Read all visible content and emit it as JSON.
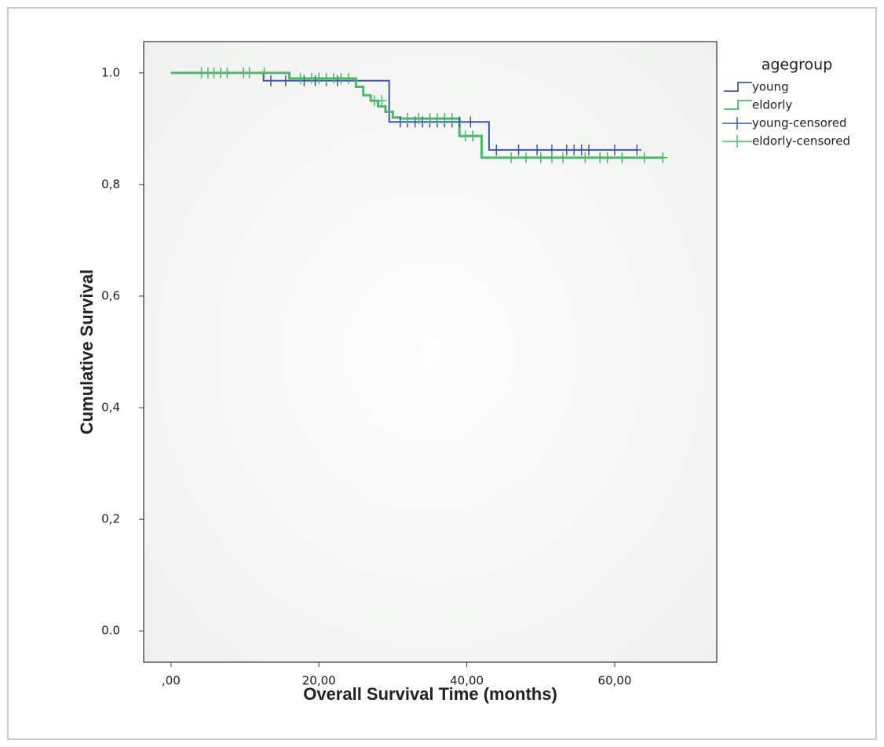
{
  "chart_data": {
    "type": "line",
    "x_label": "Overall Survival Time (months)",
    "y_label": "Cumulative Survival",
    "legend_title": "agegroup",
    "legend": "upper right outside",
    "xlim": [
      -3.7,
      73.8
    ],
    "ylim": [
      -0.056,
      1.056
    ],
    "xticks": [
      {
        "value": 0,
        "label": ",00"
      },
      {
        "value": 20,
        "label": "20,00"
      },
      {
        "value": 40,
        "label": "40,00"
      },
      {
        "value": 60,
        "label": "60,00"
      }
    ],
    "yticks": [
      {
        "value": 0,
        "label": "0.0"
      },
      {
        "value": 0.2,
        "label": "0,2"
      },
      {
        "value": 0.4,
        "label": "0,4"
      },
      {
        "value": 0.6,
        "label": "0,6"
      },
      {
        "value": 0.8,
        "label": "0,8"
      },
      {
        "value": 1,
        "label": "1.0"
      }
    ],
    "series": [
      {
        "name": "young",
        "color": "#3d5aa8",
        "x": [
          0,
          12.5,
          12.5,
          29.5,
          29.5,
          43,
          43,
          63
        ],
        "values": [
          1,
          1,
          0.986,
          0.986,
          0.912,
          0.912,
          0.862,
          0.862
        ]
      },
      {
        "name": "eldorly",
        "color": "#4cb96b",
        "x": [
          0,
          16,
          16,
          25,
          25,
          26,
          26,
          27,
          27,
          28,
          28,
          29,
          29,
          30,
          30,
          31,
          31,
          39,
          39,
          42,
          42,
          66.5
        ],
        "values": [
          1,
          1,
          0.99,
          0.99,
          0.975,
          0.975,
          0.96,
          0.96,
          0.95,
          0.95,
          0.94,
          0.94,
          0.93,
          0.93,
          0.92,
          0.92,
          0.918,
          0.918,
          0.887,
          0.887,
          0.848,
          0.848
        ]
      },
      {
        "name": "young-censored",
        "color": "#3d5aa8",
        "marker": "+",
        "x": [
          13.5,
          15.5,
          18,
          19.5,
          21,
          22.5,
          31,
          32,
          33,
          34,
          35,
          36,
          37,
          38,
          39,
          40.5,
          44,
          47,
          49.5,
          51.5,
          53.5,
          54.5,
          55.5,
          56.5,
          60,
          63
        ],
        "values": [
          0.986,
          0.986,
          0.986,
          0.986,
          0.986,
          0.986,
          0.912,
          0.912,
          0.912,
          0.912,
          0.912,
          0.912,
          0.912,
          0.912,
          0.912,
          0.912,
          0.862,
          0.862,
          0.862,
          0.862,
          0.862,
          0.862,
          0.862,
          0.862,
          0.862,
          0.862
        ]
      },
      {
        "name": "eldorly-censored",
        "color": "#4cb96b",
        "marker": "+",
        "x": [
          4.1,
          5,
          5.8,
          6.7,
          7.6,
          9.8,
          10.6,
          12.6,
          17.5,
          19,
          20,
          21,
          22,
          23,
          24,
          27.5,
          28.5,
          32,
          33.5,
          35,
          36,
          37,
          38,
          39.8,
          40.8,
          46,
          48,
          50,
          51.5,
          53,
          56,
          58,
          59,
          61,
          64,
          66.5
        ],
        "values": [
          1,
          1,
          1,
          1,
          1,
          1,
          1,
          1,
          0.99,
          0.99,
          0.99,
          0.99,
          0.99,
          0.99,
          0.99,
          0.95,
          0.95,
          0.918,
          0.918,
          0.918,
          0.918,
          0.918,
          0.918,
          0.887,
          0.887,
          0.848,
          0.848,
          0.848,
          0.848,
          0.848,
          0.848,
          0.848,
          0.848,
          0.848,
          0.848,
          0.848
        ]
      }
    ]
  }
}
